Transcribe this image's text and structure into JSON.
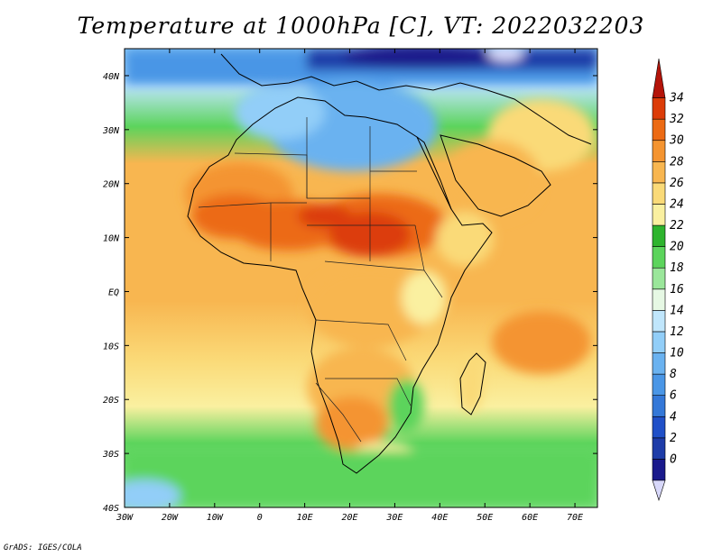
{
  "title": "Temperature at 1000hPa [C], VT: 2022032203",
  "credit": "GrADS: IGES/COLA",
  "axes": {
    "lat_labels": [
      "40N",
      "30N",
      "20N",
      "10N",
      "EQ",
      "10S",
      "20S",
      "30S",
      "40S"
    ],
    "lon_labels": [
      "30W",
      "20W",
      "10W",
      "0",
      "10E",
      "20E",
      "30E",
      "40E",
      "50E",
      "60E",
      "70E"
    ]
  },
  "colorbar": {
    "levels": [
      "0",
      "2",
      "4",
      "6",
      "8",
      "10",
      "12",
      "14",
      "16",
      "18",
      "20",
      "22",
      "24",
      "26",
      "28",
      "30",
      "32",
      "34"
    ],
    "colors": [
      "#1a1a8c",
      "#1e3ca8",
      "#2050c8",
      "#3478d8",
      "#4a96e6",
      "#6ab2f0",
      "#92cef8",
      "#c0e6fc",
      "#e6f8e4",
      "#9ae69a",
      "#5cd45c",
      "#2eb42e",
      "#faf0a0",
      "#fada78",
      "#f8b650",
      "#f49430",
      "#ec6a14",
      "#dc3c08",
      "#b4140a"
    ],
    "under_color": "#d8d8fa",
    "over_color": "#b4140a"
  },
  "chart_data": {
    "type": "heatmap",
    "variable": "Temperature at 1000hPa",
    "units": "C",
    "valid_time": "2022032203",
    "lon_range": [
      -30,
      75
    ],
    "lat_range": [
      -40,
      45
    ],
    "contour_levels": [
      0,
      2,
      4,
      6,
      8,
      10,
      12,
      14,
      16,
      18,
      20,
      22,
      24,
      26,
      28,
      30,
      32,
      34
    ]
  }
}
